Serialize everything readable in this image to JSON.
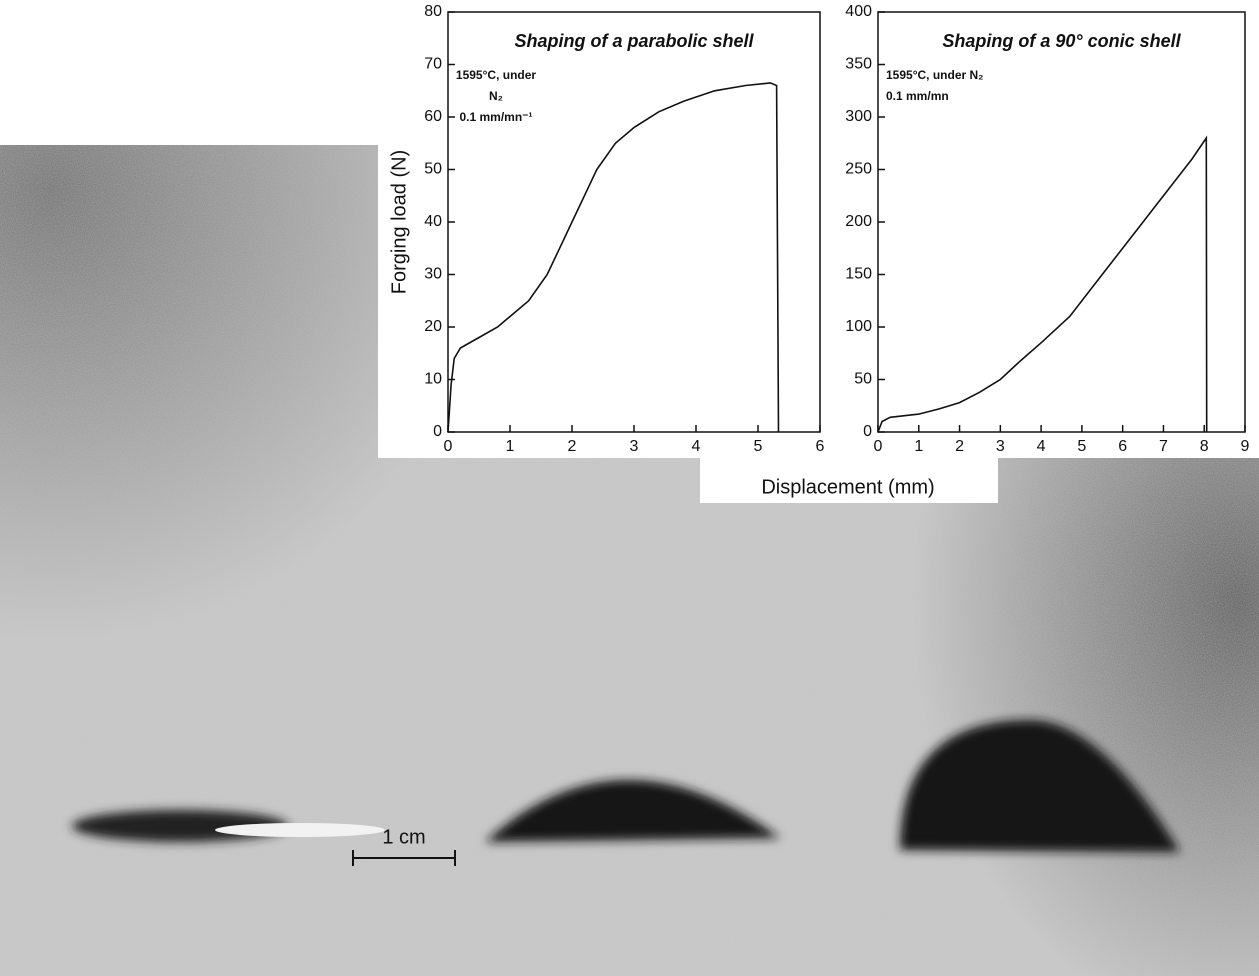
{
  "chart_data": [
    {
      "type": "line",
      "title": "Shaping of a parabolic shell",
      "annotation": [
        "1595°C, under",
        "N₂",
        "0.1 mm/mn⁻¹"
      ],
      "ylabel": "Forging load (N)",
      "xlim": [
        0,
        6
      ],
      "ylim": [
        0,
        80
      ],
      "xticks": [
        0,
        1,
        2,
        3,
        4,
        5,
        6
      ],
      "yticks": [
        0,
        10,
        20,
        30,
        40,
        50,
        60,
        70,
        80
      ],
      "series": [
        {
          "color": "#111111",
          "x": [
            0,
            0.05,
            0.1,
            0.2,
            0.5,
            0.8,
            1.0,
            1.3,
            1.6,
            1.8,
            2.0,
            2.2,
            2.4,
            2.7,
            3.0,
            3.4,
            3.8,
            4.3,
            4.8,
            5.2,
            5.3,
            5.33
          ],
          "values": [
            0,
            9,
            14,
            16,
            18,
            20,
            22,
            25,
            30,
            35,
            40,
            45,
            50,
            55,
            58,
            61,
            63,
            65,
            66,
            66.5,
            66,
            0
          ]
        }
      ]
    },
    {
      "type": "line",
      "title": "Shaping of a 90° conic shell",
      "annotation": [
        "1595°C, under N₂",
        "0.1 mm/mn"
      ],
      "xlabel": "Displacement (mm)",
      "xlim": [
        0,
        9
      ],
      "ylim": [
        0,
        400
      ],
      "xticks": [
        0,
        1,
        2,
        3,
        4,
        5,
        6,
        7,
        8,
        9
      ],
      "yticks": [
        0,
        50,
        100,
        150,
        200,
        250,
        300,
        350,
        400
      ],
      "series": [
        {
          "color": "#111111",
          "x": [
            0,
            0.1,
            0.3,
            1.0,
            1.5,
            2.0,
            2.5,
            3.0,
            3.5,
            4.0,
            4.7,
            5.2,
            5.7,
            6.2,
            6.7,
            7.2,
            7.7,
            8.05,
            8.06
          ],
          "values": [
            0,
            10,
            14,
            17,
            22,
            28,
            38,
            50,
            68,
            85,
            110,
            135,
            160,
            185,
            210,
            235,
            260,
            280,
            0
          ]
        }
      ]
    }
  ],
  "photo": {
    "scale_label": "1 cm"
  }
}
